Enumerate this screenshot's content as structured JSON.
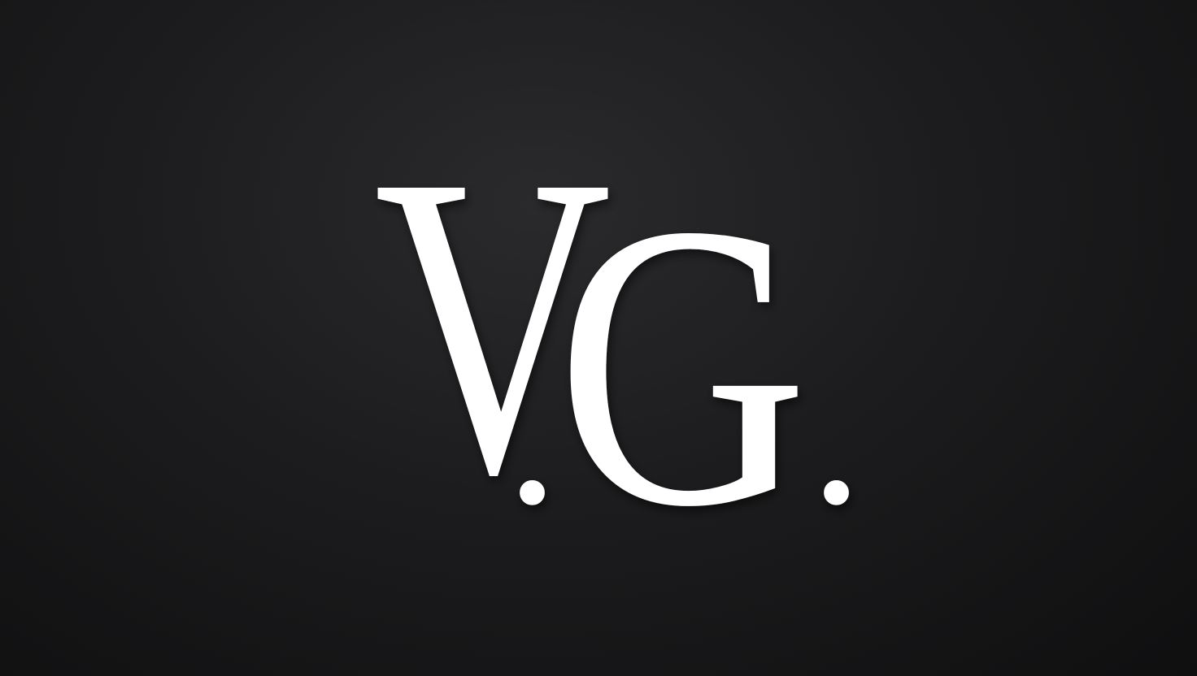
{
  "logo": {
    "initial_1": "V",
    "dot_1": ".",
    "initial_2": "G",
    "dot_2": ".",
    "text_color": "#ffffff",
    "background_color": "#1c1c1e"
  }
}
